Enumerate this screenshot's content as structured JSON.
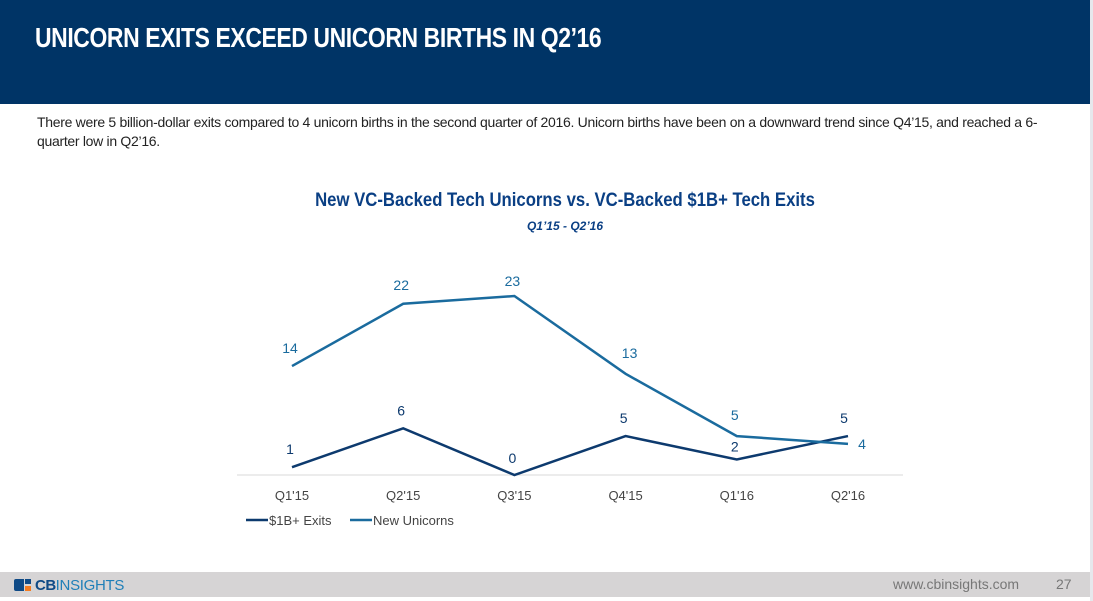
{
  "header": {
    "title": "UNICORN EXITS EXCEED UNICORN BIRTHS IN Q2’16"
  },
  "description": "There were 5 billion-dollar exits compared to 4 unicorn births in the second quarter of 2016. Unicorn births have been on a downward trend since Q4’15, and reached a 6-quarter low in Q2’16.",
  "footer": {
    "brand_bold": "CB",
    "brand_light": "INSIGHTS",
    "url": "www.cbinsights.com",
    "page_number": "27"
  },
  "colors": {
    "header_bg": "#003466",
    "exits": "#0d3a6e",
    "unicorns": "#1a6b9e",
    "footer_bg": "#d6d4d5"
  },
  "chart_data": {
    "type": "line",
    "title": "New VC-Backed Tech Unicorns vs. VC-Backed $1B+ Tech Exits",
    "subtitle": "Q1’15 - Q2’16",
    "xlabel": "",
    "ylabel": "",
    "categories": [
      "Q1'15",
      "Q2'15",
      "Q3'15",
      "Q4'15",
      "Q1'16",
      "Q2'16"
    ],
    "ylim": [
      0,
      25
    ],
    "grid": false,
    "legend_position": "bottom-left",
    "series": [
      {
        "name": "$1B+ Exits",
        "color": "#0d3a6e",
        "values": [
          1,
          6,
          0,
          5,
          2,
          5
        ]
      },
      {
        "name": "New Unicorns",
        "color": "#1a6b9e",
        "values": [
          14,
          22,
          23,
          13,
          5,
          4
        ]
      }
    ]
  }
}
